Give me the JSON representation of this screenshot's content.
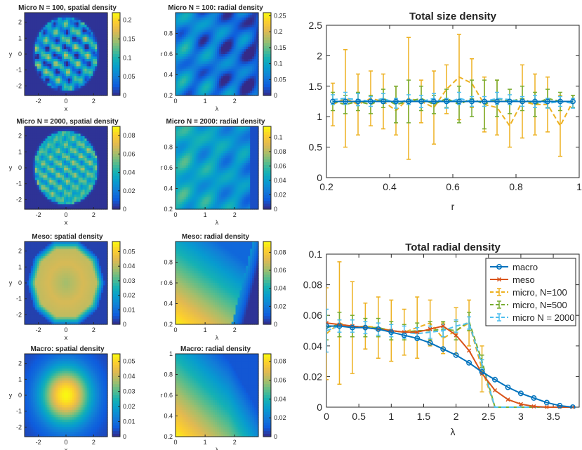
{
  "chart_data": [
    {
      "type": "heatmap",
      "title": "Micro N = 100, spatial density",
      "xlabel": "x",
      "ylabel": "y",
      "x_ticks": [
        "-2",
        "0",
        "2"
      ],
      "y_ticks": [
        "2",
        "1",
        "0",
        "-1",
        "-2"
      ],
      "xlim": [
        -3,
        3
      ],
      "ylim": [
        -2.6,
        2.6
      ],
      "colorbar_ticks": [
        "0.2",
        "0.15",
        "0.1",
        "0.05",
        "0"
      ],
      "colorbar_range": [
        0,
        0.22
      ],
      "pattern": "speckled disk"
    },
    {
      "type": "heatmap",
      "title": "Micro N = 100: radial density",
      "xlabel": "λ",
      "ylabel": "r",
      "x_ticks": [
        "0",
        "1",
        "2"
      ],
      "y_ticks": [
        "0.8",
        "0.6",
        "0.4",
        "0.2"
      ],
      "xlim": [
        0,
        2.8
      ],
      "ylim": [
        0.2,
        1
      ],
      "colorbar_ticks": [
        "0.25",
        "0.2",
        "0.15",
        "0.1",
        "0.05",
        "0"
      ],
      "colorbar_range": [
        0,
        0.26
      ],
      "pattern": "streaky"
    },
    {
      "type": "heatmap",
      "title": "Micro N = 2000, spatial density",
      "xlabel": "x",
      "ylabel": "y",
      "x_ticks": [
        "-2",
        "0",
        "2"
      ],
      "y_ticks": [
        "2",
        "1",
        "0",
        "-1",
        "-2"
      ],
      "xlim": [
        -3,
        3
      ],
      "ylim": [
        -2.6,
        2.6
      ],
      "colorbar_ticks": [
        "0.08",
        "0.06",
        "0.04",
        "0.02",
        "0"
      ],
      "colorbar_range": [
        0,
        0.09
      ],
      "pattern": "speckled disk"
    },
    {
      "type": "heatmap",
      "title": "Micro N = 2000: radial density",
      "xlabel": "λ",
      "ylabel": "r",
      "x_ticks": [
        "0",
        "1",
        "2"
      ],
      "y_ticks": [
        "0.8",
        "0.6",
        "0.4",
        "0.2"
      ],
      "xlim": [
        0,
        2.8
      ],
      "ylim": [
        0.2,
        1
      ],
      "colorbar_ticks": [
        "0.1",
        "0.08",
        "0.06",
        "0.04",
        "0.02",
        "0"
      ],
      "colorbar_range": [
        0,
        0.115
      ],
      "pattern": "streaky"
    },
    {
      "type": "heatmap",
      "title": "Meso: spatial density",
      "xlabel": "x",
      "ylabel": "y",
      "x_ticks": [
        "-2",
        "0",
        "2"
      ],
      "y_ticks": [
        "2",
        "1",
        "0",
        "-1",
        "-2"
      ],
      "xlim": [
        -3,
        3
      ],
      "ylim": [
        -2.6,
        2.6
      ],
      "colorbar_ticks": [
        "0.05",
        "0.04",
        "0.03",
        "0.02",
        "0.01",
        "0"
      ],
      "colorbar_range": [
        0,
        0.057
      ],
      "pattern": "polygon plateau"
    },
    {
      "type": "heatmap",
      "title": "Meso: radial density",
      "xlabel": "λ",
      "ylabel": "r",
      "x_ticks": [
        "0",
        "1",
        "2"
      ],
      "y_ticks": [
        "0.8",
        "0.6",
        "0.4",
        "0.2"
      ],
      "xlim": [
        0,
        2.8
      ],
      "ylim": [
        0.2,
        1
      ],
      "colorbar_ticks": [
        "0.08",
        "0.06",
        "0.04",
        "0.02",
        "0"
      ],
      "colorbar_range": [
        0,
        0.092
      ],
      "pattern": "smooth gradient with front"
    },
    {
      "type": "heatmap",
      "title": "Macro: spatial density",
      "xlabel": "x",
      "ylabel": "y",
      "x_ticks": [
        "-2",
        "0",
        "2"
      ],
      "y_ticks": [
        "2",
        "1",
        "0",
        "-1",
        "-2"
      ],
      "xlim": [
        -3,
        3
      ],
      "ylim": [
        -2.6,
        2.6
      ],
      "colorbar_ticks": [
        "0.05",
        "0.04",
        "0.03",
        "0.02",
        "0.01",
        "0"
      ],
      "colorbar_range": [
        0,
        0.055
      ],
      "pattern": "radial gaussian"
    },
    {
      "type": "heatmap",
      "title": "Macro: radial density",
      "xlabel": "λ",
      "ylabel": "r",
      "x_ticks": [
        "0",
        "1",
        "2"
      ],
      "y_ticks": [
        "1",
        "0.8",
        "0.6",
        "0.4",
        "0.2"
      ],
      "xlim": [
        0,
        2.8
      ],
      "ylim": [
        0.2,
        1
      ],
      "colorbar_ticks": [
        "0.08",
        "0.06",
        "0.04",
        "0.02",
        "0"
      ],
      "colorbar_range": [
        0,
        0.088
      ],
      "pattern": "smooth gradient"
    },
    {
      "type": "line",
      "title": "Total size density",
      "xlabel": "r",
      "ylabel": "",
      "xlim": [
        0.2,
        1
      ],
      "ylim": [
        0,
        2.5
      ],
      "x_ticks": [
        "0.2",
        "0.4",
        "0.6",
        "0.8",
        "1"
      ],
      "y_ticks": [
        "2.5",
        "2",
        "1.5",
        "1",
        "0.5",
        "0"
      ],
      "x": [
        0.22,
        0.26,
        0.3,
        0.34,
        0.38,
        0.42,
        0.46,
        0.5,
        0.54,
        0.58,
        0.62,
        0.66,
        0.7,
        0.74,
        0.78,
        0.82,
        0.86,
        0.9,
        0.94,
        0.98
      ],
      "series": [
        {
          "name": "macro",
          "color": "#0072BD",
          "values": [
            1.25,
            1.25,
            1.25,
            1.25,
            1.25,
            1.25,
            1.25,
            1.25,
            1.25,
            1.25,
            1.25,
            1.25,
            1.25,
            1.25,
            1.25,
            1.25,
            1.25,
            1.25,
            1.25,
            1.25
          ]
        },
        {
          "name": "meso",
          "color": "#D95319",
          "values": [
            1.25,
            1.25,
            1.25,
            1.25,
            1.25,
            1.25,
            1.25,
            1.25,
            1.25,
            1.25,
            1.25,
            1.25,
            1.25,
            1.25,
            1.25,
            1.25,
            1.25,
            1.25,
            1.25,
            1.25
          ]
        },
        {
          "name": "micro, N=100",
          "color": "#EDB120",
          "values": [
            1.2,
            1.3,
            1.2,
            1.3,
            1.25,
            1.1,
            1.3,
            1.25,
            1.15,
            1.45,
            1.65,
            1.55,
            1.2,
            1.15,
            0.85,
            1.25,
            1.2,
            1.2,
            0.85,
            1.25
          ],
          "err": [
            0.35,
            0.8,
            0.5,
            0.45,
            0.45,
            0.4,
            1.0,
            0.35,
            0.6,
            0.4,
            0.7,
            0.4,
            0.45,
            0.45,
            0.35,
            0.6,
            0.5,
            0.45,
            0.5,
            0.1
          ]
        },
        {
          "name": "micro, N=500",
          "color": "#77AC30",
          "values": [
            1.25,
            1.2,
            1.25,
            1.2,
            1.3,
            1.2,
            1.25,
            1.3,
            1.2,
            1.3,
            1.2,
            1.3,
            1.2,
            1.3,
            1.25,
            1.3,
            1.2,
            1.3,
            1.25,
            1.25
          ],
          "err": [
            0.15,
            0.15,
            0.15,
            0.15,
            0.15,
            0.3,
            0.35,
            0.2,
            0.15,
            0.15,
            0.3,
            0.3,
            0.4,
            0.3,
            0.2,
            0.2,
            0.2,
            0.15,
            0.15,
            0.1
          ]
        },
        {
          "name": "micro N = 2000",
          "color": "#4DBEEE",
          "values": [
            1.28,
            1.3,
            1.28,
            1.25,
            1.3,
            1.22,
            1.28,
            1.25,
            1.3,
            1.22,
            1.3,
            1.25,
            1.25,
            1.3,
            1.28,
            1.25,
            1.25,
            1.22,
            1.25,
            1.22
          ],
          "err": [
            0.08,
            0.1,
            0.1,
            0.08,
            0.08,
            0.08,
            0.08,
            0.1,
            0.08,
            0.08,
            0.1,
            0.08,
            0.08,
            0.1,
            0.08,
            0.08,
            0.1,
            0.08,
            0.08,
            0.08
          ]
        }
      ]
    },
    {
      "type": "line",
      "title": "Total radial density",
      "xlabel": "λ",
      "ylabel": "",
      "xlim": [
        0,
        3.9
      ],
      "ylim": [
        0,
        0.1
      ],
      "x_ticks": [
        "0",
        "0.5",
        "1",
        "1.5",
        "2",
        "2.5",
        "3",
        "3.5"
      ],
      "y_ticks": [
        "0.1",
        "0.08",
        "0.06",
        "0.04",
        "0.02",
        "0"
      ],
      "legend": "top-right",
      "series": [
        {
          "name": "macro",
          "color": "#0072BD",
          "marker": "o",
          "x": [
            0,
            0.2,
            0.4,
            0.6,
            0.8,
            1.0,
            1.2,
            1.4,
            1.6,
            1.8,
            2.0,
            2.2,
            2.4,
            2.6,
            2.8,
            3.0,
            3.2,
            3.4,
            3.6,
            3.8
          ],
          "values": [
            0.053,
            0.053,
            0.052,
            0.052,
            0.051,
            0.049,
            0.047,
            0.045,
            0.042,
            0.038,
            0.034,
            0.029,
            0.023,
            0.018,
            0.013,
            0.009,
            0.006,
            0.003,
            0.001,
            0.0
          ]
        },
        {
          "name": "meso",
          "color": "#D95319",
          "marker": "x",
          "x": [
            0,
            0.2,
            0.4,
            0.6,
            0.8,
            1.0,
            1.2,
            1.4,
            1.6,
            1.8,
            2.0,
            2.2,
            2.4,
            2.6,
            2.8,
            3.0,
            3.2,
            3.4,
            3.6,
            3.8
          ],
          "values": [
            0.055,
            0.054,
            0.053,
            0.052,
            0.051,
            0.05,
            0.049,
            0.049,
            0.051,
            0.053,
            0.047,
            0.037,
            0.022,
            0.011,
            0.005,
            0.002,
            0.0005,
            0.0,
            0.0,
            0.0
          ]
        },
        {
          "name": "micro, N=100",
          "color": "#EDB120",
          "x": [
            0,
            0.2,
            0.4,
            0.6,
            0.8,
            1.0,
            1.2,
            1.4,
            1.6,
            1.8,
            2.0,
            2.2,
            2.4,
            2.6,
            2.8,
            3.0,
            3.2,
            3.4,
            3.6,
            3.8
          ],
          "values": [
            0.048,
            0.055,
            0.052,
            0.053,
            0.052,
            0.05,
            0.049,
            0.052,
            0.055,
            0.045,
            0.05,
            0.055,
            0.025,
            0.0,
            0.0,
            0.0,
            0.0,
            0.0,
            0.0,
            0.0
          ],
          "err": [
            0.03,
            0.04,
            0.03,
            0.015,
            0.02,
            0.02,
            0.015,
            0.02,
            0.015,
            0.01,
            0.015,
            0.015,
            0.015,
            0.0,
            0.0,
            0.0,
            0.0,
            0.0,
            0.0,
            0.0
          ]
        },
        {
          "name": "micro, N=500",
          "color": "#77AC30",
          "x": [
            0,
            0.2,
            0.4,
            0.6,
            0.8,
            1.0,
            1.2,
            1.4,
            1.6,
            1.8,
            2.0,
            2.2,
            2.4,
            2.6,
            2.8,
            3.0,
            3.2,
            3.4,
            3.6,
            3.8
          ],
          "values": [
            0.052,
            0.054,
            0.053,
            0.052,
            0.052,
            0.05,
            0.049,
            0.05,
            0.05,
            0.051,
            0.05,
            0.056,
            0.03,
            0.0,
            0.0,
            0.0,
            0.0,
            0.0,
            0.0,
            0.0
          ],
          "err": [
            0.008,
            0.008,
            0.007,
            0.006,
            0.006,
            0.006,
            0.005,
            0.005,
            0.006,
            0.005,
            0.006,
            0.006,
            0.004,
            0.0,
            0.0,
            0.0,
            0.0,
            0.0,
            0.0,
            0.0
          ]
        },
        {
          "name": "micro N = 2000",
          "color": "#4DBEEE",
          "x": [
            0,
            0.2,
            0.4,
            0.6,
            0.8,
            1.0,
            1.2,
            1.4,
            1.6,
            1.8,
            2.0,
            2.2,
            2.4,
            2.6,
            2.8,
            3.0,
            3.2,
            3.4,
            3.6,
            3.8
          ],
          "values": [
            0.05,
            0.053,
            0.053,
            0.052,
            0.051,
            0.05,
            0.049,
            0.048,
            0.049,
            0.05,
            0.053,
            0.055,
            0.028,
            0.0,
            0.0,
            0.0,
            0.0,
            0.0,
            0.0,
            0.0
          ],
          "err": [
            0.014,
            0.004,
            0.004,
            0.004,
            0.004,
            0.004,
            0.004,
            0.004,
            0.004,
            0.004,
            0.004,
            0.004,
            0.003,
            0.0,
            0.0,
            0.0,
            0.0,
            0.0,
            0.0,
            0.0
          ]
        }
      ]
    }
  ]
}
